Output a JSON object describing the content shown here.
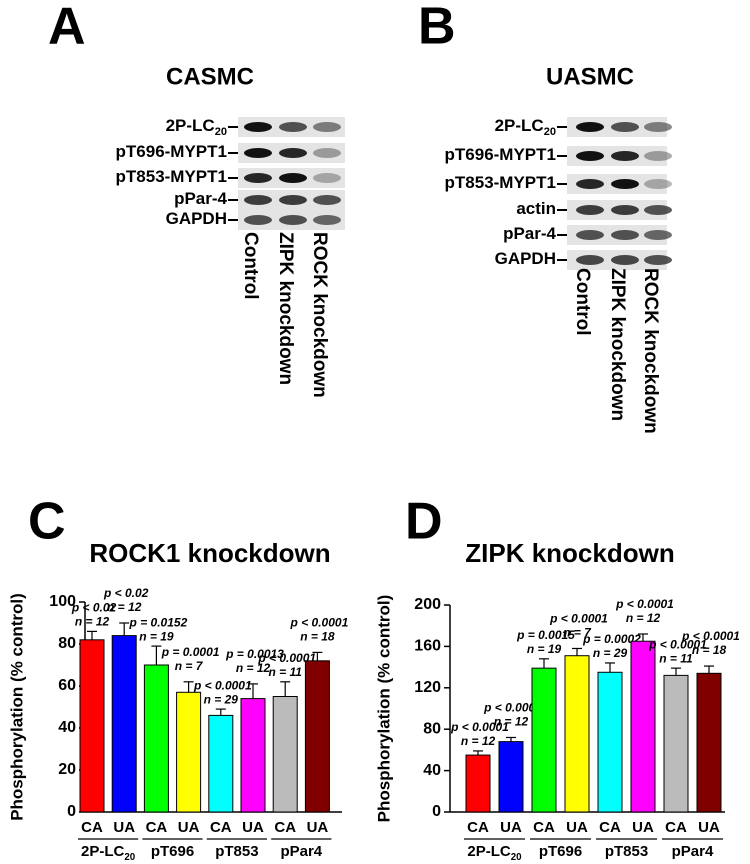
{
  "panels": [
    {
      "letter": "A",
      "title": "CASMC",
      "rows": [
        {
          "text": "2P-LC",
          "sub": "20"
        },
        {
          "text": "pT696-MYPT1"
        },
        {
          "text": "pT853-MYPT1"
        },
        {
          "text": "pPar-4"
        },
        {
          "text": "GAPDH"
        }
      ],
      "lanes": [
        "Control",
        "ZIPK knockdown",
        "ROCK knockdown"
      ]
    },
    {
      "letter": "B",
      "title": "UASMC",
      "rows": [
        {
          "text": "2P-LC",
          "sub": "20"
        },
        {
          "text": "pT696-MYPT1"
        },
        {
          "text": "pT853-MYPT1"
        },
        {
          "text": "actin"
        },
        {
          "text": "pPar-4"
        },
        {
          "text": "GAPDH"
        }
      ],
      "lanes": [
        "Control",
        "ZIPK knockdown",
        "ROCK knockdown"
      ]
    }
  ],
  "chart_data": [
    {
      "type": "bar",
      "letter": "C",
      "title": "ROCK1 knockdown",
      "y_label": "Phosphorylation (% control)",
      "categories": [
        "CA",
        "UA",
        "CA",
        "UA",
        "CA",
        "UA",
        "CA",
        "UA"
      ],
      "groups": [
        {
          "text": "2P-LC",
          "sub": "20"
        },
        {
          "text": "pT696"
        },
        {
          "text": "pT853"
        },
        {
          "text": "pPar4"
        }
      ],
      "values": [
        82,
        84,
        70,
        57,
        46,
        54,
        55,
        72
      ],
      "errors": [
        4,
        6,
        9,
        5,
        3,
        7,
        7,
        4
      ],
      "colors": [
        "#ff0000",
        "#0000ff",
        "#00ff00",
        "#ffff00",
        "#00ffff",
        "#ff00ff",
        "#bbbbbb",
        "#800000"
      ],
      "p_labels": [
        "p < 0.02",
        "p < 0.02",
        "p = 0.0152",
        "p = 0.0001",
        "p < 0.0001",
        "p = 0.0013",
        "p < 0.0001",
        "p < 0.0001"
      ],
      "n_labels": [
        "n = 12",
        "n = 12",
        "n = 19",
        "n = 7",
        "n = 29",
        "n = 12",
        "n = 11",
        "n = 18"
      ],
      "ylim": [
        0,
        100
      ],
      "yticks": [
        0,
        20,
        40,
        60,
        80,
        100
      ]
    },
    {
      "type": "bar",
      "letter": "D",
      "title": "ZIPK knockdown",
      "y_label": "Phosphorylation (% control)",
      "categories": [
        "CA",
        "UA",
        "CA",
        "UA",
        "CA",
        "UA",
        "CA",
        "UA"
      ],
      "groups": [
        {
          "text": "2P-LC",
          "sub": "20"
        },
        {
          "text": "pT696"
        },
        {
          "text": "pT853"
        },
        {
          "text": "pPar4"
        }
      ],
      "values": [
        55,
        68,
        139,
        151,
        135,
        165,
        132,
        134
      ],
      "errors": [
        4,
        4,
        9,
        7,
        9,
        7,
        7,
        7
      ],
      "colors": [
        "#ff0000",
        "#0000ff",
        "#00ff00",
        "#ffff00",
        "#00ffff",
        "#ff00ff",
        "#bbbbbb",
        "#800000"
      ],
      "p_labels": [
        "p < 0.0001",
        "p < 0.0001",
        "p = 0.0015",
        "p < 0.0001",
        "p = 0.0002",
        "p < 0.0001",
        "p < 0.0001",
        "p < 0.0001"
      ],
      "n_labels": [
        "n = 12",
        "n = 12",
        "n = 19",
        "n = 7",
        "n = 29",
        "n = 12",
        "n = 11",
        "n = 18"
      ],
      "ylim": [
        0,
        200
      ],
      "yticks": [
        0,
        40,
        80,
        120,
        160,
        200
      ]
    }
  ]
}
